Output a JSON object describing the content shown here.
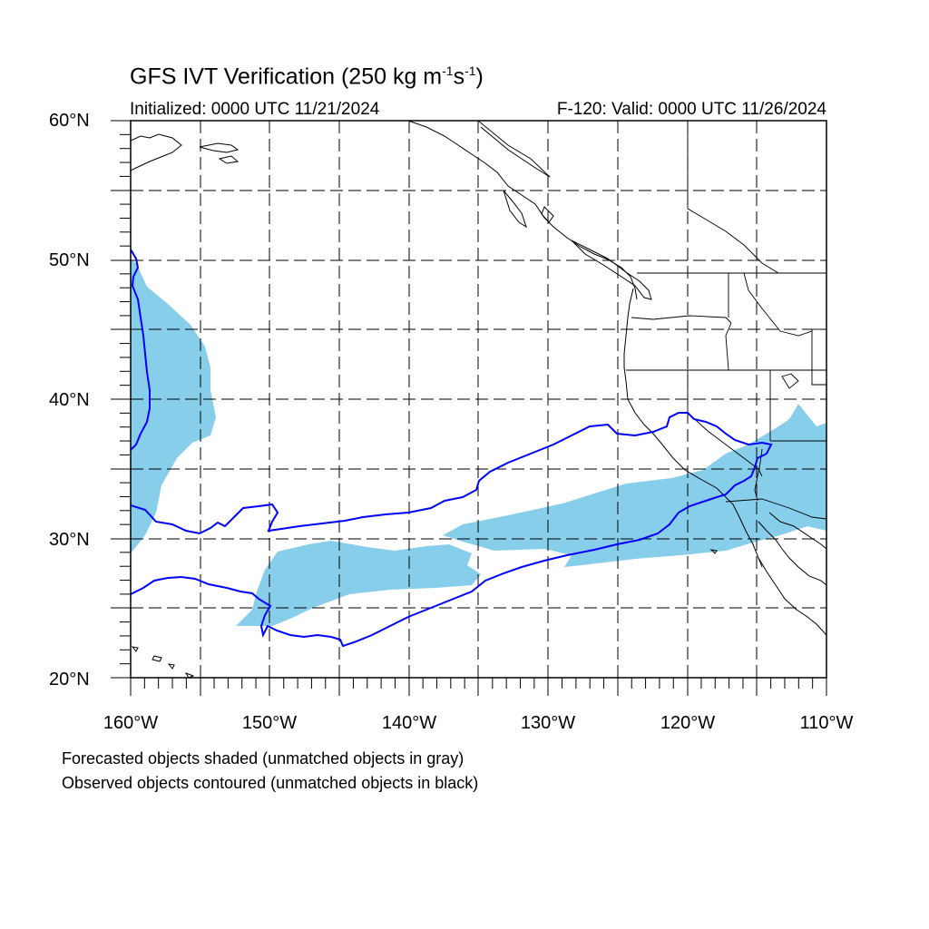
{
  "title": {
    "main": "GFS IVT Verification (250 kg m",
    "sup1": "-1",
    "mid": "s",
    "sup2": "-1",
    "end": ")"
  },
  "initialized": "Initialized: 0000 UTC 11/21/2024",
  "valid": "F-120: Valid: 0000 UTC 11/26/2024",
  "lat_labels": [
    "60°N",
    "50°N",
    "40°N",
    "30°N",
    "20°N"
  ],
  "lon_labels": [
    "160°W",
    "150°W",
    "140°W",
    "130°W",
    "120°W",
    "110°W"
  ],
  "notes": {
    "forecast": "Forecasted objects shaded (unmatched objects in gray)",
    "observed": "Observed objects contoured (unmatched objects in black)"
  },
  "colors": {
    "forecast_fill": "#87ceeb",
    "observed_contour": "#0000ff",
    "coastline": "#000000",
    "grid": "#000000"
  },
  "map": {
    "lon_range": [
      -160,
      -110
    ],
    "lat_range": [
      20,
      60
    ],
    "grid_lon_step": 5,
    "grid_lat_step": 5
  }
}
